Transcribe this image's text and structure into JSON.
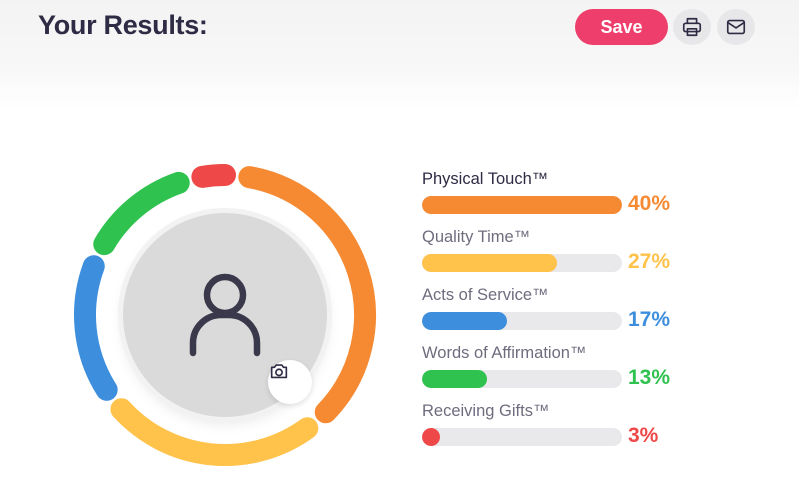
{
  "header": {
    "title": "Your Results:",
    "save_label": "Save",
    "print_icon": "printer-icon",
    "email_icon": "mail-icon"
  },
  "avatar": {
    "icon": "user-icon",
    "camera_icon": "camera-icon"
  },
  "results": [
    {
      "label": "Physical Touch™",
      "percent_text": "40%",
      "percent": 40,
      "color": "#f58a33"
    },
    {
      "label": "Quality Time™",
      "percent_text": "27%",
      "percent": 27,
      "color": "#ffc24a"
    },
    {
      "label": "Acts of Service™",
      "percent_text": "17%",
      "percent": 17,
      "color": "#3d8fde"
    },
    {
      "label": "Words of Affirmation™",
      "percent_text": "13%",
      "percent": 13,
      "color": "#2fc24f"
    },
    {
      "label": "Receiving Gifts™",
      "percent_text": "3%",
      "percent": 3,
      "color": "#ee4848"
    }
  ]
}
